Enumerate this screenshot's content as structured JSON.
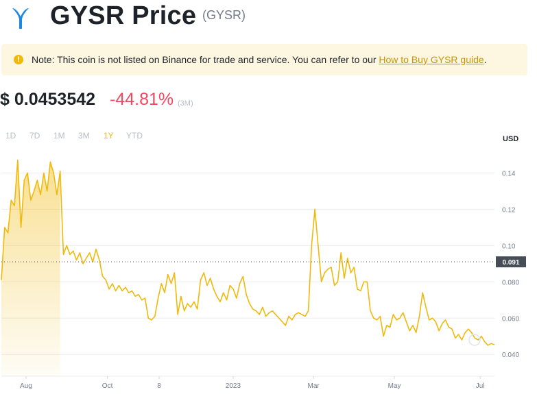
{
  "header": {
    "title": "GYSR Price",
    "symbol": "(GYSR)",
    "logo_icon": "gysr-logo-icon",
    "brand_color": "#1e88e5"
  },
  "note": {
    "icon": "exclamation-icon",
    "text": "Note: This coin is not listed on Binance for trade and service. You can refer to our ",
    "link_text": "How to Buy GYSR guide",
    "suffix": "."
  },
  "price": {
    "value": "$ 0.0453542",
    "change": "-44.81%",
    "period": "(3M)",
    "change_color": "#f6465d"
  },
  "tabs": [
    {
      "label": "1D",
      "active": false
    },
    {
      "label": "7D",
      "active": false
    },
    {
      "label": "1M",
      "active": false
    },
    {
      "label": "3M",
      "active": false
    },
    {
      "label": "1Y",
      "active": true
    },
    {
      "label": "YTD",
      "active": false
    }
  ],
  "currency_label": "USD",
  "chart_data": {
    "type": "line",
    "line_color": "#f0b90b",
    "current_value": 0.0453542,
    "reference_value": 0.091,
    "reference_label": "0.091",
    "y_ticks": [
      0.04,
      0.06,
      0.08,
      0.1,
      0.12,
      0.14
    ],
    "y_tick_labels": [
      "0.040",
      "0.060",
      "0.080",
      "0.10",
      "0.12",
      "0.14"
    ],
    "ylim": [
      0.028,
      0.156
    ],
    "x_ticks": [
      {
        "label": "Aug",
        "t": 0.05
      },
      {
        "label": "Oct",
        "t": 0.215
      },
      {
        "label": "8",
        "t": 0.32
      },
      {
        "label": "2023",
        "t": 0.47
      },
      {
        "label": "Mar",
        "t": 0.633
      },
      {
        "label": "May",
        "t": 0.797
      },
      {
        "label": "Jul",
        "t": 0.971
      }
    ],
    "grid": true,
    "highlighted_range": {
      "start_t": 0.0,
      "end_t": 0.12
    },
    "values": [
      0.081,
      0.11,
      0.107,
      0.125,
      0.122,
      0.147,
      0.11,
      0.136,
      0.14,
      0.125,
      0.13,
      0.136,
      0.128,
      0.14,
      0.13,
      0.146,
      0.14,
      0.128,
      0.141,
      0.095,
      0.1,
      0.095,
      0.097,
      0.092,
      0.096,
      0.09,
      0.093,
      0.096,
      0.091,
      0.098,
      0.092,
      0.083,
      0.081,
      0.076,
      0.079,
      0.075,
      0.078,
      0.075,
      0.077,
      0.074,
      0.075,
      0.072,
      0.073,
      0.07,
      0.071,
      0.06,
      0.059,
      0.061,
      0.071,
      0.079,
      0.074,
      0.084,
      0.079,
      0.085,
      0.062,
      0.072,
      0.064,
      0.068,
      0.066,
      0.069,
      0.065,
      0.081,
      0.085,
      0.078,
      0.082,
      0.076,
      0.072,
      0.069,
      0.074,
      0.07,
      0.078,
      0.076,
      0.071,
      0.079,
      0.083,
      0.073,
      0.068,
      0.065,
      0.064,
      0.062,
      0.066,
      0.061,
      0.063,
      0.064,
      0.062,
      0.06,
      0.058,
      0.056,
      0.061,
      0.059,
      0.062,
      0.063,
      0.062,
      0.061,
      0.064,
      0.1,
      0.12,
      0.1,
      0.08,
      0.085,
      0.087,
      0.088,
      0.078,
      0.08,
      0.096,
      0.082,
      0.093,
      0.085,
      0.088,
      0.076,
      0.075,
      0.08,
      0.08,
      0.064,
      0.06,
      0.059,
      0.061,
      0.05,
      0.056,
      0.055,
      0.062,
      0.059,
      0.06,
      0.063,
      0.058,
      0.053,
      0.056,
      0.052,
      0.061,
      0.074,
      0.066,
      0.059,
      0.06,
      0.058,
      0.053,
      0.057,
      0.059,
      0.055,
      0.054,
      0.049,
      0.051,
      0.048,
      0.052,
      0.054,
      0.052,
      0.049,
      0.048,
      0.05,
      0.047,
      0.045,
      0.046,
      0.0453542
    ]
  }
}
